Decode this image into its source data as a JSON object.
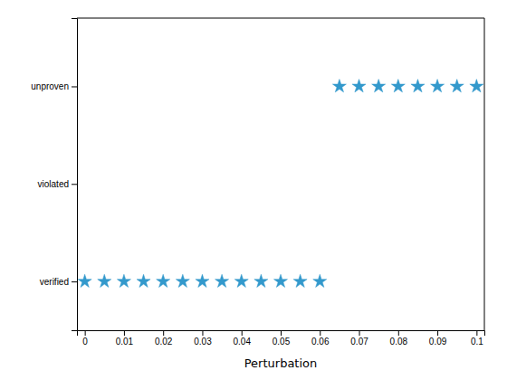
{
  "chart_data": {
    "type": "scatter",
    "xlabel": "Perturbation",
    "series": [
      {
        "x": [
          0.0,
          0.005,
          0.01,
          0.015,
          0.02,
          0.025,
          0.03,
          0.035,
          0.04,
          0.045,
          0.05,
          0.055,
          0.06
        ],
        "values": [
          0,
          0,
          0,
          0,
          0,
          0,
          0,
          0,
          0,
          0,
          0,
          0,
          0
        ],
        "color": "#3399CC",
        "marker": "star"
      },
      {
        "x": [
          0.065,
          0.07,
          0.075,
          0.08,
          0.085,
          0.09,
          0.095,
          0.1
        ],
        "values": [
          2,
          2,
          2,
          2,
          2,
          2,
          2,
          2
        ],
        "color": "#3399CC",
        "marker": "star"
      }
    ],
    "xlim": [
      -0.002,
      0.102
    ],
    "ylim": [
      -0.5,
      2.7
    ],
    "xticks": [
      0,
      0.01,
      0.02,
      0.03,
      0.04,
      0.05,
      0.06,
      0.07,
      0.08,
      0.09,
      0.1
    ],
    "yticks": [
      {
        "value": 0,
        "label": "verified"
      },
      {
        "value": 1,
        "label": "violated"
      },
      {
        "value": 2,
        "label": "unproven"
      }
    ],
    "grid": false
  }
}
